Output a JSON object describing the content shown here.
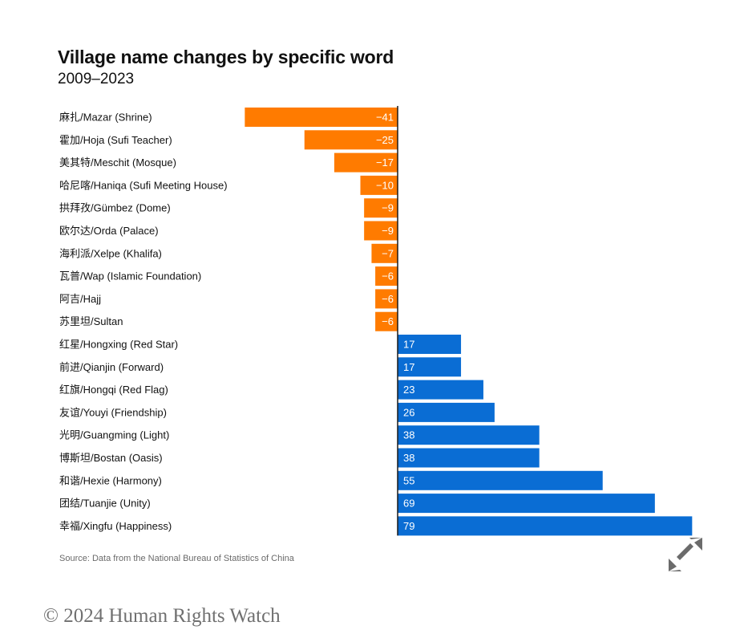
{
  "chart_data": {
    "type": "bar",
    "orientation": "horizontal",
    "title": "Village name changes by specific word",
    "subtitle": "2009–2023",
    "categories": [
      "麻扎/Mazar (Shrine)",
      "霍加/Hoja (Sufi Teacher)",
      "美其特/Meschit (Mosque)",
      "哈尼喀/Haniqa (Sufi Meeting House)",
      "拱拜孜/Gümbez (Dome)",
      "欧尔达/Orda (Palace)",
      "海利派/Xelpe (Khalifa)",
      "瓦普/Wap (Islamic Foundation)",
      "阿吉/Hajj",
      "苏里坦/Sultan",
      "红星/Hongxing (Red Star)",
      "前进/Qianjin (Forward)",
      "红旗/Hongqi (Red Flag)",
      "友谊/Youyi (Friendship)",
      "光明/Guangming (Light)",
      "博斯坦/Bostan (Oasis)",
      "和谐/Hexie (Harmony)",
      "团结/Tuanjie (Unity)",
      "幸福/Xingfu (Happiness)"
    ],
    "values": [
      -41,
      -25,
      -17,
      -10,
      -9,
      -9,
      -7,
      -6,
      -6,
      -6,
      17,
      17,
      23,
      26,
      38,
      38,
      55,
      69,
      79
    ],
    "value_labels": [
      "−41",
      "−25",
      "−17",
      "−10",
      "−9",
      "−9",
      "−7",
      "−6",
      "−6",
      "−6",
      "17",
      "17",
      "23",
      "26",
      "38",
      "38",
      "55",
      "69",
      "79"
    ],
    "colors": {
      "negative": "#FF7B00",
      "positive": "#0A6DD4",
      "axis": "#1a1a1a",
      "label": "#ffffff"
    },
    "xlabel": "",
    "ylabel": "",
    "grid": false,
    "legend": "none"
  },
  "footer": {
    "source": "Source: Data from the National Bureau of Statistics of China",
    "copyright": "© 2024 Human Rights Watch",
    "expand_icon": "expand-arrows-icon"
  }
}
